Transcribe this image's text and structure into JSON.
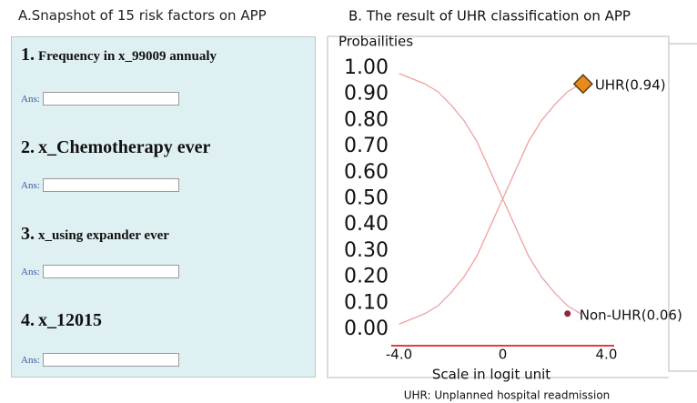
{
  "form": {
    "title": "A.Snapshot of 15 risk factors on APP",
    "questions": [
      {
        "number": "1.",
        "text": "Frequency in x_99009 annualy",
        "answer_label": "Ans:"
      },
      {
        "number": "2.",
        "text": "x_Chemotherapy ever",
        "answer_label": "Ans:"
      },
      {
        "number": "3.",
        "text": "x_using expander ever",
        "answer_label": "Ans:"
      },
      {
        "number": "4.",
        "text": "x_12015",
        "answer_label": "Ans:"
      }
    ]
  },
  "chart_data": {
    "type": "line",
    "title": "B. The result of UHR classification on APP",
    "y_label": "Probailities",
    "x_label": "Scale in logit unit",
    "footnote": "UHR: Unplanned hospital readmission",
    "x": [
      -4,
      -3.5,
      -3,
      -2.5,
      -2,
      -1.5,
      -1,
      -0.5,
      0,
      0.5,
      1,
      1.5,
      2,
      2.5,
      3
    ],
    "series": [
      {
        "name": "UHR",
        "color": "#f2a0a0",
        "values": [
          0.02,
          0.04,
          0.06,
          0.09,
          0.14,
          0.2,
          0.28,
          0.39,
          0.5,
          0.61,
          0.72,
          0.8,
          0.86,
          0.91,
          0.94
        ]
      },
      {
        "name": "Non-UHR",
        "color": "#f2a0a0",
        "values": [
          0.98,
          0.96,
          0.94,
          0.91,
          0.86,
          0.8,
          0.72,
          0.61,
          0.5,
          0.39,
          0.28,
          0.2,
          0.14,
          0.09,
          0.06
        ]
      }
    ],
    "annotations": [
      {
        "label": "UHR(0.94)",
        "x": 3.1,
        "y": 0.94,
        "color": "#e8891c"
      },
      {
        "label": "Non-UHR(0.06)",
        "x": 2.5,
        "y": 0.06,
        "color": "#8b2a3e"
      }
    ],
    "xlim": [
      -4.3,
      4.3
    ],
    "ylim": [
      0,
      1
    ],
    "xticks": [
      {
        "value": -4,
        "label": "-4.0"
      },
      0,
      {
        "value": 4,
        "label": "4.0"
      }
    ],
    "yticks": [
      {
        "value": 0,
        "label": "0.00"
      },
      {
        "value": 0.1,
        "label": "0.10"
      },
      {
        "value": 0.2,
        "label": "0.20"
      },
      {
        "value": 0.3,
        "label": "0.30"
      },
      {
        "value": 0.4,
        "label": "0.40"
      },
      {
        "value": 0.5,
        "label": "0.50"
      },
      {
        "value": 0.6,
        "label": "0.60"
      },
      {
        "value": 0.7,
        "label": "0.70"
      },
      {
        "value": 0.8,
        "label": "0.80"
      },
      {
        "value": 0.9,
        "label": "0.90"
      },
      {
        "value": 1,
        "label": "1.00"
      }
    ],
    "axis_color": "#e8393f"
  }
}
